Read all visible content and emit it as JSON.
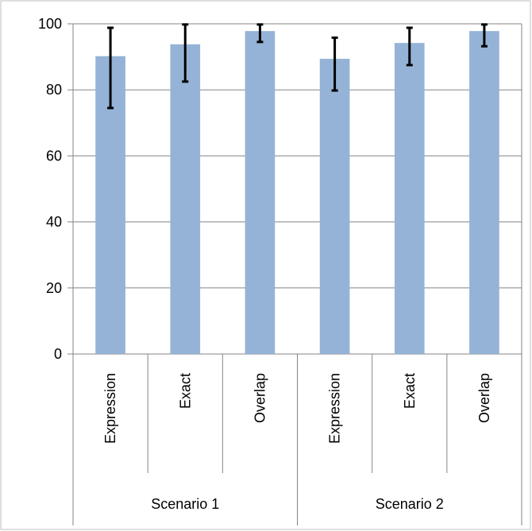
{
  "chart_data": {
    "type": "bar",
    "ylim": [
      0,
      100
    ],
    "yticks": [
      0,
      20,
      40,
      60,
      80,
      100
    ],
    "grid": true,
    "colors": {
      "bar": "#95b3d7",
      "error": "#000000",
      "grid": "#868686",
      "frame": "#868686"
    },
    "groups": [
      {
        "name": "Scenario 1",
        "categories": [
          "Expression",
          "Exact",
          "Overlap"
        ],
        "values": [
          90.2,
          93.8,
          97.8
        ],
        "err_low": [
          74.5,
          82.5,
          94.5
        ],
        "err_high": [
          98.8,
          99.8,
          99.8
        ]
      },
      {
        "name": "Scenario 2",
        "categories": [
          "Expression",
          "Exact",
          "Overlap"
        ],
        "values": [
          89.4,
          94.2,
          97.8
        ],
        "err_low": [
          79.8,
          87.5,
          93.2
        ],
        "err_high": [
          95.8,
          98.8,
          99.8
        ]
      }
    ]
  }
}
